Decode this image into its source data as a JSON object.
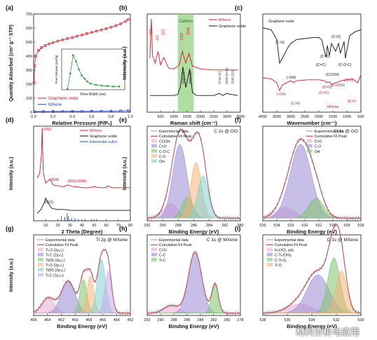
{
  "colors": {
    "red": "#d8182a",
    "blue": "#1f3fc4",
    "black": "#111111",
    "green_band": "#8fd07a",
    "purple": "#9a8ad6",
    "orange": "#f5b27a",
    "green": "#7cc46a",
    "pink": "#e7a9d6",
    "teal": "#7fd1d1",
    "lavender": "#c9a8e8",
    "grey": "#9a9a9a"
  },
  "watermark": "材料分析与应用",
  "chart_data": [
    {
      "panel": "(a)",
      "type": "line",
      "xlabel": "Relative Pressure (P/P₀)",
      "ylabel": "Quantity Adsorbed (cm³ g⁻¹ STP)",
      "xlim": [
        0,
        1
      ],
      "ylim": [
        0,
        700
      ],
      "xticks": [
        "0.0",
        "0.2",
        "0.4",
        "0.6",
        "0.8",
        "1.0"
      ],
      "yticks": [
        "0",
        "100",
        "200",
        "300",
        "400",
        "500",
        "600",
        "700"
      ],
      "legend": [
        "Graphene oxide",
        "MXene"
      ],
      "series": [
        {
          "name": "Graphene oxide",
          "x": [
            0.005,
            0.01,
            0.02,
            0.05,
            0.08,
            0.12,
            0.16,
            0.2,
            0.25,
            0.3,
            0.35,
            0.4,
            0.45,
            0.5,
            0.55,
            0.6,
            0.65,
            0.7,
            0.75,
            0.8,
            0.85,
            0.9,
            0.95,
            0.98
          ],
          "values": [
            210,
            330,
            400,
            440,
            460,
            475,
            487,
            496,
            507,
            516,
            525,
            533,
            542,
            551,
            560,
            569,
            578,
            587,
            596,
            606,
            617,
            630,
            648,
            662
          ]
        },
        {
          "name": "MXene",
          "x": [
            0.01,
            0.1,
            0.2,
            0.3,
            0.4,
            0.5,
            0.6,
            0.7,
            0.8,
            0.9,
            0.98
          ],
          "values": [
            4,
            5,
            5,
            6,
            6,
            6,
            7,
            7,
            8,
            9,
            11
          ]
        }
      ],
      "inset": {
        "xlabel": "Pore Width (nm)",
        "ylabel": "Pore Volume (cm³/g)",
        "x": [
          1,
          1.5,
          2,
          2.5,
          3,
          3.5,
          4,
          4.5,
          5,
          6,
          7,
          8,
          9,
          10
        ],
        "values": [
          0.002,
          0.04,
          0.085,
          0.07,
          0.05,
          0.035,
          0.027,
          0.02,
          0.015,
          0.012,
          0.01,
          0.009,
          0.008,
          0.008
        ]
      }
    },
    {
      "panel": "(b)",
      "type": "line",
      "xlabel": "Raman shift (cm⁻¹)",
      "ylabel": "Intensity (a.u.)",
      "xlim": [
        0,
        3500
      ],
      "xticks": [
        "500",
        "1000",
        "1500",
        "2000",
        "2500",
        "3000",
        "3500"
      ],
      "legend": [
        "MXene",
        "Graphene oxide"
      ],
      "band_label": "Carbon",
      "peak_labels_mxene": [
        "155",
        "407",
        "623",
        "1322",
        "1565"
      ],
      "peak_labels_go": [
        "1345 (D)",
        "1599 (G)",
        "2716 (G′)",
        "2970 (D+G)",
        "3195 (2G)"
      ],
      "series": [
        {
          "name": "MXene",
          "x": [
            100,
            155,
            200,
            300,
            407,
            500,
            623,
            800,
            1000,
            1200,
            1322,
            1450,
            1565,
            1700,
            2000,
            2500,
            3000,
            3400
          ],
          "values": [
            0.55,
            0.95,
            0.58,
            0.5,
            0.62,
            0.48,
            0.56,
            0.45,
            0.44,
            0.48,
            0.62,
            0.5,
            0.6,
            0.47,
            0.44,
            0.43,
            0.43,
            0.43
          ]
        },
        {
          "name": "Graphene oxide",
          "x": [
            100,
            500,
            1000,
            1150,
            1250,
            1345,
            1450,
            1520,
            1599,
            1700,
            1850,
            2000,
            2500,
            2716,
            2850,
            2970,
            3195,
            3400
          ],
          "values": [
            0.17,
            0.17,
            0.17,
            0.18,
            0.26,
            0.46,
            0.25,
            0.34,
            0.44,
            0.2,
            0.17,
            0.17,
            0.17,
            0.19,
            0.17,
            0.19,
            0.18,
            0.17
          ]
        }
      ]
    },
    {
      "panel": "(c)",
      "type": "line",
      "xlabel": "Wavenumber (cm⁻¹)",
      "xlim": [
        4000,
        500
      ],
      "xticks": [
        "4000",
        "3500",
        "3000",
        "2500",
        "2000",
        "1500",
        "1000",
        "500"
      ],
      "annotations_go": [
        "Graphene oxide",
        "(C-H)",
        "(-OH)",
        "(C=O)",
        "(C=C)",
        "(COOH)",
        "(C-O)",
        "(C-O-C)"
      ],
      "annotations_mxene": [
        "(-OH)",
        "(C-H)",
        "(C=O)",
        "(C=C)",
        "(COOH)",
        "(Ti-O)",
        "(C-F)",
        "MXene"
      ],
      "series": [
        {
          "name": "Graphene oxide",
          "x": [
            4000,
            3700,
            3500,
            3400,
            3300,
            3100,
            3000,
            2800,
            2500,
            2200,
            2000,
            1900,
            1800,
            1730,
            1700,
            1620,
            1550,
            1400,
            1300,
            1230,
            1100,
            1050,
            900,
            700,
            500
          ],
          "values": [
            0.86,
            0.84,
            0.74,
            0.5,
            0.55,
            0.66,
            0.7,
            0.74,
            0.75,
            0.76,
            0.76,
            0.74,
            0.62,
            0.56,
            0.68,
            0.58,
            0.7,
            0.62,
            0.7,
            0.6,
            0.72,
            0.55,
            0.78,
            0.82,
            0.84
          ]
        },
        {
          "name": "MXene",
          "x": [
            4000,
            3700,
            3500,
            3400,
            3300,
            3000,
            2900,
            2800,
            2400,
            2000,
            1800,
            1720,
            1620,
            1550,
            1400,
            1200,
            1000,
            800,
            620,
            560,
            500
          ],
          "values": [
            0.35,
            0.34,
            0.3,
            0.22,
            0.28,
            0.32,
            0.3,
            0.32,
            0.33,
            0.33,
            0.32,
            0.3,
            0.31,
            0.28,
            0.3,
            0.32,
            0.33,
            0.34,
            0.3,
            0.34,
            0.38
          ]
        }
      ]
    },
    {
      "panel": "(d)",
      "type": "line",
      "xlabel": "2 Theta (Degree)",
      "ylabel": "Intensity (a.u.)",
      "xlim": [
        0,
        80
      ],
      "xticks": [
        "10",
        "20",
        "30",
        "40",
        "50",
        "60",
        "70",
        "80"
      ],
      "legend": [
        "MXene",
        "Graphene oxide",
        "Elemental sulfur"
      ],
      "peak_labels": [
        "(002)",
        "(004)",
        "(006)",
        "(008)",
        "(001)"
      ],
      "series": [
        {
          "name": "MXene",
          "x": [
            3,
            5,
            6.5,
            7,
            8,
            10,
            13.5,
            16,
            20,
            25,
            28,
            33,
            36,
            40,
            45,
            50,
            55,
            60,
            61,
            65,
            70,
            75,
            80
          ],
          "values": [
            0.45,
            0.5,
            0.7,
            0.98,
            0.5,
            0.4,
            0.44,
            0.38,
            0.37,
            0.36,
            0.38,
            0.36,
            0.36,
            0.35,
            0.35,
            0.36,
            0.35,
            0.35,
            0.37,
            0.35,
            0.35,
            0.35,
            0.35
          ]
        },
        {
          "name": "Graphene oxide",
          "x": [
            3,
            6,
            9,
            10,
            12,
            15,
            20,
            25,
            30,
            40,
            50,
            60,
            70,
            80
          ],
          "values": [
            0.08,
            0.12,
            0.2,
            0.24,
            0.19,
            0.13,
            0.12,
            0.12,
            0.11,
            0.11,
            0.11,
            0.11,
            0.11,
            0.11
          ]
        },
        {
          "name": "Elemental sulfur",
          "x": [
            23,
            25.8,
            27.7,
            28.6,
            31.4,
            34.2,
            37,
            42.7,
            47.9,
            52
          ],
          "values": [
            0.05,
            0.04,
            0.08,
            0.05,
            0.03,
            0.03,
            0.02,
            0.02,
            0.02,
            0.02
          ]
        }
      ]
    },
    {
      "panel": "(e)",
      "type": "area",
      "title": "C 1s @ GO",
      "xlabel": "Binding Energy (eV)",
      "ylabel": "Intensity (a.u.)",
      "xlim": [
        292,
        280
      ],
      "xticks": [
        "292",
        "290",
        "288",
        "286",
        "284",
        "282",
        "280"
      ],
      "legend": [
        "Experimental data",
        "Cumulative Fit Peak",
        "COOH",
        "C=O",
        "C-O-C",
        "C-O",
        "OH"
      ],
      "components": [
        {
          "name": "COOH",
          "center": 289.0,
          "height": 0.16,
          "width": 0.9
        },
        {
          "name": "C=O",
          "center": 287.8,
          "height": 0.82,
          "width": 0.9
        },
        {
          "name": "C-O-C",
          "center": 286.8,
          "height": 0.24,
          "width": 0.7
        },
        {
          "name": "C-O",
          "center": 285.7,
          "height": 0.62,
          "width": 0.7
        },
        {
          "name": "OH",
          "center": 284.8,
          "height": 0.47,
          "width": 0.7
        }
      ]
    },
    {
      "panel": "(f)",
      "type": "area",
      "title": "O 1s @ GO",
      "xlabel": "Binding Energy (eV)",
      "xlim": [
        535,
        528
      ],
      "xticks": [
        "535",
        "534",
        "533",
        "532",
        "531",
        "530",
        "529",
        "528"
      ],
      "legend": [
        "Experimental data",
        "Cumulative Fit Peak",
        "C=O",
        "C-O",
        "OH"
      ],
      "components": [
        {
          "name": "C=O",
          "center": 533.4,
          "height": 0.12,
          "width": 0.65
        },
        {
          "name": "C-O",
          "center": 532.3,
          "height": 0.82,
          "width": 0.75
        },
        {
          "name": "OH",
          "center": 531.2,
          "height": 0.22,
          "width": 0.55
        }
      ]
    },
    {
      "panel": "(g)",
      "type": "area",
      "title": "Ti 2p @ MXene",
      "xlabel": "Binding Energy (eV)",
      "ylabel": "Intensity (a.u.)",
      "xlim": [
        466,
        452
      ],
      "xticks": [
        "466",
        "464",
        "462",
        "460",
        "458",
        "456",
        "454",
        "452"
      ],
      "legend": [
        "Experimental data",
        "Cumulative Fit Peak",
        "Ti-O (2p₁/₂)",
        "Ti-C (2p₁/₂)",
        "Ti(III) (2p₁/₂)",
        "Ti-O (2p₃/₂)",
        "Ti(III) (2p₃/₂)",
        "Ti-C (2p₃/₂)"
      ],
      "components": [
        {
          "name": "Ti-O (2p₁/₂)",
          "center": 463.9,
          "height": 0.2,
          "width": 0.9
        },
        {
          "name": "Ti-C (2p₁/₂)",
          "center": 461.0,
          "height": 0.42,
          "width": 1.0
        },
        {
          "name": "Ti(III) (2p₁/₂)",
          "center": 458.8,
          "height": 0.44,
          "width": 0.5
        },
        {
          "name": "Ti-O (2p₃/₂)",
          "center": 457.8,
          "height": 0.48,
          "width": 0.5
        },
        {
          "name": "Ti(III) (2p₃/₂)",
          "center": 456.2,
          "height": 0.7,
          "width": 0.6
        },
        {
          "name": "Ti-C (2p₃/₂)",
          "center": 455.2,
          "height": 0.55,
          "width": 0.5
        }
      ]
    },
    {
      "panel": "(h)",
      "type": "area",
      "title": "C 1s @ MXene",
      "xlabel": "Binding Energy (eV)",
      "xlim": [
        292,
        278
      ],
      "xticks": [
        "292",
        "290",
        "288",
        "286",
        "284",
        "282",
        "280",
        "278"
      ],
      "legend": [
        "Experimental data",
        "Cumulative Fit Peak",
        "C=O",
        "C-C",
        "Ti-C"
      ],
      "components": [
        {
          "name": "C=O",
          "center": 288.4,
          "height": 0.1,
          "width": 1.1
        },
        {
          "name": "C-C",
          "center": 284.8,
          "height": 0.8,
          "width": 1.0
        },
        {
          "name": "Ti-C",
          "center": 281.8,
          "height": 0.38,
          "width": 0.5
        }
      ]
    },
    {
      "panel": "(i)",
      "type": "area",
      "title": "O 1s @ MXene",
      "xlabel": "Binding Energy (eV)",
      "xlim": [
        538,
        530
      ],
      "xticks": [
        "538",
        "536",
        "534",
        "532",
        "530"
      ],
      "legend": [
        "Experimental data",
        "Cumulative Fit Peak",
        "H₂O/O₂ ads",
        "C-Ti-(OH)ₓ",
        "C-Ti-Oₓ",
        "Ti-O"
      ],
      "components": [
        {
          "name": "H₂O/O₂ ads",
          "center": 535.0,
          "height": 0.12,
          "width": 1.0
        },
        {
          "name": "C-Ti-(OH)ₓ",
          "center": 533.5,
          "height": 0.5,
          "width": 0.9
        },
        {
          "name": "C-Ti-Oₓ",
          "center": 532.2,
          "height": 0.72,
          "width": 0.5
        },
        {
          "name": "Ti-O",
          "center": 531.6,
          "height": 0.55,
          "width": 0.45
        }
      ]
    }
  ]
}
